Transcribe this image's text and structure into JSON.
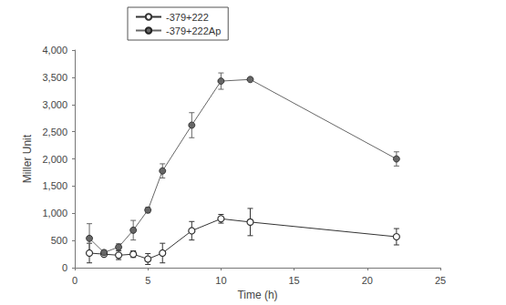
{
  "chart_data": {
    "type": "line",
    "x_label": "Time (h)",
    "y_label": "Miller Unit",
    "x": [
      1,
      2,
      3,
      4,
      5,
      6,
      8,
      10,
      12,
      22
    ],
    "xlim": [
      0,
      25
    ],
    "xticks": [
      0,
      5,
      10,
      15,
      20,
      25
    ],
    "ylim": [
      0,
      4000
    ],
    "yticks": [
      0,
      500,
      1000,
      1500,
      2000,
      2500,
      3000,
      3500,
      4000
    ],
    "grid": false,
    "legend": "upper left",
    "series": [
      {
        "name": "-379+222",
        "color": "#333333",
        "marker": "circle-open",
        "values": [
          270,
          250,
          230,
          250,
          160,
          270,
          680,
          900,
          840,
          570
        ],
        "errors": [
          180,
          40,
          80,
          60,
          100,
          180,
          170,
          80,
          250,
          150
        ]
      },
      {
        "name": "-379+222Ap",
        "color": "#666666",
        "marker": "circle",
        "values": [
          540,
          280,
          380,
          690,
          1060,
          1780,
          2620,
          3430,
          3460,
          2000
        ],
        "errors": [
          270,
          40,
          60,
          180,
          50,
          130,
          230,
          150,
          20,
          130
        ]
      }
    ]
  }
}
